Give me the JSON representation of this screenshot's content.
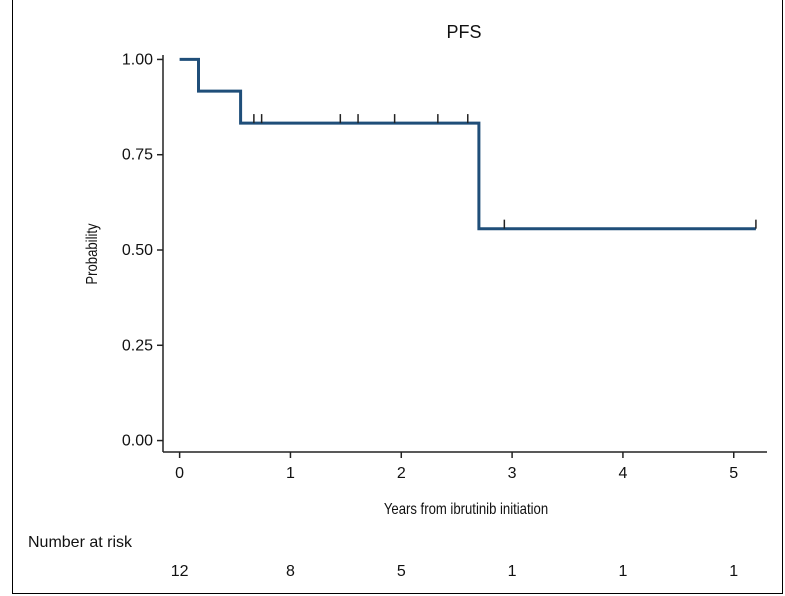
{
  "chart_data": {
    "type": "line",
    "title": "PFS",
    "xlabel": "Years from ibrutinib initiation",
    "ylabel": "Probability",
    "xlim": [
      -0.15,
      5.3
    ],
    "ylim": [
      -0.03,
      1.03
    ],
    "xticks": [
      "0",
      "1",
      "2",
      "3",
      "4",
      "5"
    ],
    "yticks": [
      "0.00",
      "0.25",
      "0.50",
      "0.75",
      "1.00"
    ],
    "grid": false,
    "series": [
      {
        "color": "#1f4e79",
        "step_x": [
          0,
          0.17,
          0.17,
          0.55,
          0.55,
          2.7,
          2.7,
          5.2
        ],
        "step_y": [
          1.0,
          1.0,
          0.917,
          0.917,
          0.833,
          0.833,
          0.556,
          0.556
        ],
        "censor_x": [
          0.67,
          0.74,
          1.45,
          1.61,
          1.94,
          2.33,
          2.6,
          2.93,
          5.2
        ],
        "censor_y": [
          0.833,
          0.833,
          0.833,
          0.833,
          0.833,
          0.833,
          0.833,
          0.556,
          0.556
        ]
      }
    ],
    "risk_table": {
      "label": "Number at risk",
      "times": [
        0,
        1,
        2,
        3,
        4,
        5
      ],
      "values": [
        "12",
        "8",
        "5",
        "1",
        "1",
        "1"
      ]
    }
  }
}
